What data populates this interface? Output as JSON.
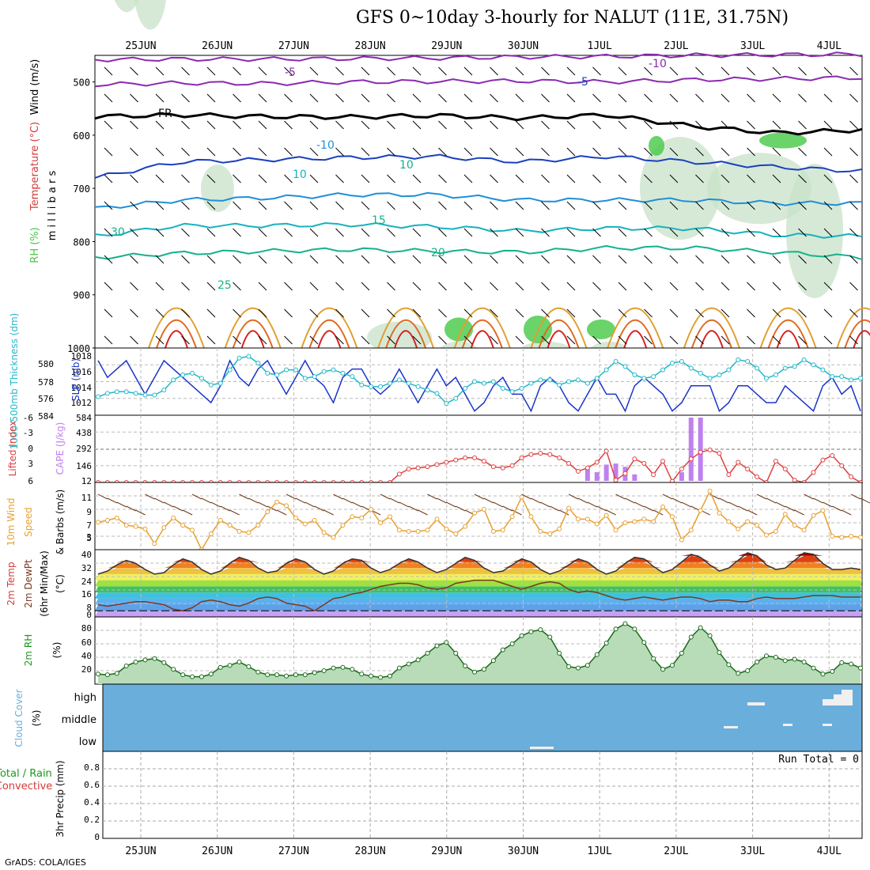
{
  "title": "GFS 0~10day 3-hourly for NALUT (11E, 31.75N)",
  "credit": "GrADS: COLA/IGES",
  "colors": {
    "rh_fill": "#c8e2c8",
    "rh_dark": "#6a8c6a",
    "rh_bright": "#45c845",
    "wind_m5": "#8a2ab0",
    "freeze": "#000000",
    "t_m5": "#1a3fbf",
    "t_m10": "#1f8fd8",
    "t_15": "#17b2bf",
    "t_20": "#14b28a",
    "t_25": "#e0a030",
    "t_30": "#e06a20",
    "t_35": "#d82020",
    "slp": "#1a35c8",
    "thick": "#22b8c8",
    "cape": "#c080f0",
    "li": "#e04040",
    "wind10": "#e8a030",
    "barb": "#6b3a1a",
    "cloud": "#6aaedc",
    "precip_grid": "#999999"
  },
  "chart_data": [
    {
      "type": "heatmap",
      "panel": "upper_air",
      "ylabel": "m i l l i b a r s",
      "side_labels": [
        "Wind (m/s)",
        "Temperature (°C)",
        "RH (%)"
      ],
      "yticks": [
        500,
        600,
        700,
        800,
        900,
        1000
      ],
      "ylim": [
        1000,
        450
      ],
      "x_dates": [
        "25JUN",
        "26JUN",
        "27JUN",
        "28JUN",
        "29JUN",
        "30JUN",
        "1JUL",
        "2JUL",
        "3JUL",
        "4JUL"
      ],
      "contour_labels": [
        "-10",
        "-5",
        "FR",
        "-5",
        "-10",
        "10",
        "15",
        "20",
        "25",
        "30",
        "10"
      ],
      "isotherms": [
        {
          "name": "-10",
          "p": [
            458,
            457,
            457,
            456,
            455,
            453,
            452,
            450,
            449,
            448
          ]
        },
        {
          "name": "-5",
          "p": [
            505,
            502,
            503,
            500,
            499,
            498,
            500,
            496,
            494,
            492
          ]
        },
        {
          "name": "FR",
          "p": [
            565,
            562,
            565,
            566,
            563,
            568,
            562,
            583,
            596,
            590
          ]
        },
        {
          "name": "-5",
          "p": [
            680,
            650,
            646,
            642,
            640,
            650,
            640,
            650,
            660,
            668
          ]
        },
        {
          "name": "10",
          "p": [
            738,
            722,
            718,
            712,
            712,
            722,
            722,
            722,
            728,
            728
          ]
        },
        {
          "name": "15",
          "p": [
            790,
            770,
            770,
            768,
            772,
            780,
            775,
            775,
            788,
            790
          ]
        },
        {
          "name": "20",
          "p": [
            830,
            822,
            818,
            815,
            818,
            820,
            812,
            812,
            820,
            830
          ]
        }
      ]
    },
    {
      "type": "line",
      "panel": "slp_thickness",
      "ylabel_left": "1000-500mb Thickness (dm)",
      "ylabel_right": "SLP (mb)",
      "left_ticks": [
        "580",
        "578",
        "576",
        "584"
      ],
      "right_ticks": [
        "1018",
        "1016",
        "1014",
        "1012"
      ],
      "series": [
        {
          "name": "SLP",
          "values": [
            1017,
            1015,
            1016,
            1017,
            1015,
            1013,
            1015,
            1017,
            1016,
            1015,
            1014,
            1013,
            1012,
            1014,
            1017,
            1015,
            1014,
            1016,
            1017,
            1015,
            1013,
            1015,
            1017,
            1015,
            1014,
            1012,
            1015,
            1016,
            1016,
            1014,
            1013,
            1014,
            1016,
            1014,
            1012,
            1014,
            1016,
            1014,
            1015,
            1013,
            1011,
            1012,
            1014,
            1015,
            1013,
            1013,
            1011,
            1014,
            1015,
            1014,
            1012,
            1011,
            1013,
            1015,
            1013,
            1013,
            1011,
            1014,
            1015,
            1014,
            1013,
            1011,
            1012,
            1014,
            1014,
            1014,
            1011,
            1012,
            1014,
            1014,
            1013,
            1012,
            1012,
            1014,
            1013,
            1012,
            1011,
            1014,
            1015,
            1013,
            1014,
            1011
          ]
        },
        {
          "name": "Thickness",
          "values": [
            576.2,
            576.6,
            576.8,
            576.8,
            576.6,
            576.4,
            576.4,
            577.0,
            578.2,
            578.8,
            579.0,
            578.4,
            577.6,
            577.8,
            579.4,
            580.8,
            581.0,
            580.2,
            579.0,
            578.8,
            579.4,
            579.4,
            578.4,
            578.6,
            579.2,
            579.4,
            579.0,
            578.6,
            577.6,
            577.4,
            577.4,
            577.8,
            578.2,
            577.8,
            577.4,
            577.0,
            576.6,
            575.4,
            576.0,
            577.2,
            578.0,
            577.8,
            578.0,
            577.2,
            576.8,
            577.2,
            577.8,
            578.2,
            578.2,
            577.6,
            578.0,
            578.2,
            577.8,
            578.4,
            579.4,
            580.4,
            579.8,
            578.8,
            578.4,
            578.6,
            579.4,
            580.2,
            580.4,
            579.6,
            579.0,
            578.4,
            578.8,
            579.4,
            580.6,
            580.4,
            579.6,
            578.4,
            578.8,
            579.6,
            579.8,
            580.6,
            580.0,
            579.4,
            578.6,
            578.6,
            578.2,
            578.4
          ]
        }
      ]
    },
    {
      "type": "bar",
      "panel": "cape_li",
      "ylabel_left": "Lifted Index",
      "ylabel_right": "CAPE (J/kg)",
      "left_ticks": [
        "-6",
        "-3",
        "0",
        "3",
        "6"
      ],
      "right_ticks": [
        "584",
        "438",
        "292",
        "146",
        "12"
      ],
      "cape": [
        0,
        0,
        0,
        0,
        0,
        0,
        0,
        0,
        0,
        0,
        0,
        0,
        0,
        0,
        0,
        0,
        0,
        0,
        0,
        0,
        0,
        0,
        0,
        0,
        0,
        0,
        0,
        0,
        0,
        0,
        0,
        0,
        0,
        0,
        0,
        0,
        0,
        0,
        0,
        0,
        0,
        0,
        0,
        0,
        0,
        0,
        0,
        0,
        0,
        0,
        0,
        0,
        110,
        80,
        150,
        160,
        130,
        60,
        0,
        0,
        0,
        0,
        80,
        584,
        584,
        0,
        0,
        0,
        0,
        0,
        0,
        0,
        0,
        0,
        0,
        0,
        0,
        0,
        0,
        0,
        0,
        0
      ],
      "lifted_index": [
        6,
        6,
        6,
        6,
        6,
        6,
        6,
        6,
        6,
        6,
        6,
        6,
        6,
        6,
        6,
        6,
        6,
        6,
        6,
        6,
        6,
        6,
        6,
        6,
        6,
        6,
        6,
        6,
        6,
        6,
        6,
        6,
        4.5,
        3.6,
        3.4,
        3.2,
        2.8,
        2.4,
        2.0,
        1.6,
        1.6,
        2.2,
        3.2,
        3.4,
        3.0,
        1.6,
        1.0,
        0.8,
        1.0,
        1.6,
        2.6,
        4.0,
        3.4,
        2.4,
        0.4,
        5.6,
        4.4,
        1.8,
        2.6,
        4.6,
        2.2,
        5.8,
        3.6,
        1.8,
        0.6,
        0.2,
        0.8,
        4.6,
        2.4,
        3.6,
        5.0,
        6.0,
        2.2,
        3.6,
        5.6,
        6.0,
        4.2,
        2.0,
        1.2,
        3.0,
        5.0,
        6.0
      ]
    },
    {
      "type": "line",
      "panel": "wind10",
      "ylabel": "10m Wind Speed & Barbs (m/s)",
      "yticks": [
        "11",
        "9",
        "7",
        "5",
        "3"
      ],
      "ylim": [
        1,
        12
      ],
      "series": [
        {
          "name": "Speed",
          "values": [
            5.5,
            5.8,
            6.2,
            5.0,
            4.8,
            4.4,
            2.0,
            4.6,
            6.2,
            5.0,
            4.2,
            1.0,
            3.6,
            5.8,
            5.0,
            4.0,
            3.8,
            5.0,
            7.2,
            8.8,
            8.2,
            6.2,
            5.2,
            5.8,
            3.8,
            3.0,
            5.0,
            6.4,
            6.2,
            7.6,
            5.4,
            6.4,
            4.2,
            4.0,
            4.0,
            4.2,
            6.0,
            4.4,
            3.6,
            4.8,
            7.0,
            7.6,
            4.0,
            4.2,
            6.4,
            9.6,
            6.4,
            4.0,
            3.6,
            4.4,
            7.8,
            6.0,
            6.0,
            5.2,
            6.6,
            4.2,
            5.4,
            5.6,
            6.0,
            5.6,
            8.0,
            6.4,
            2.6,
            4.2,
            7.4,
            10.6,
            7.0,
            5.6,
            4.4,
            5.6,
            5.0,
            3.4,
            4.0,
            6.8,
            5.0,
            4.2,
            6.6,
            7.4,
            3.2,
            3.0,
            3.2,
            3.0
          ]
        }
      ]
    },
    {
      "type": "area",
      "panel": "temp2m",
      "ylabel": "2m Temp 2m DewPt (6hr Min/Max) (°C)",
      "yticks": [
        "40",
        "32",
        "24",
        "16",
        "8",
        "0"
      ],
      "ylim": [
        -4,
        40
      ],
      "series": [
        {
          "name": "Temp",
          "values": [
            24,
            26,
            30,
            33,
            31,
            27,
            24,
            25,
            30,
            34,
            32,
            27,
            24,
            26,
            31,
            35,
            33,
            28,
            25,
            26,
            31,
            34,
            32,
            27,
            24,
            26,
            31,
            34,
            33,
            28,
            25,
            27,
            31,
            34,
            32,
            28,
            25,
            27,
            31,
            35,
            33,
            28,
            25,
            26,
            30,
            34,
            32,
            27,
            24,
            26,
            30,
            34,
            32,
            27,
            24,
            26,
            31,
            35,
            34,
            29,
            25,
            27,
            32,
            37,
            35,
            30,
            26,
            28,
            33,
            38,
            36,
            30,
            27,
            28,
            33,
            38,
            37,
            31,
            27,
            27,
            28,
            27
          ]
        },
        {
          "name": "DewPt",
          "values": [
            4,
            3,
            4,
            5,
            6,
            6,
            5,
            4,
            1,
            0,
            2,
            6,
            7,
            6,
            4,
            3,
            5,
            8,
            9,
            8,
            5,
            4,
            3,
            0,
            4,
            8,
            9,
            11,
            12,
            14,
            16,
            17,
            18,
            18,
            17,
            15,
            14,
            15,
            18,
            19,
            20,
            20,
            20,
            18,
            16,
            14,
            16,
            18,
            19,
            18,
            14,
            12,
            13,
            12,
            10,
            8,
            7,
            8,
            9,
            8,
            7,
            8,
            9,
            9,
            8,
            6,
            7,
            7,
            6,
            6,
            8,
            9,
            8,
            8,
            8,
            9,
            10,
            10,
            10,
            9,
            9,
            9
          ]
        }
      ]
    },
    {
      "type": "area",
      "panel": "rh2m",
      "ylabel": "2m RH (%)",
      "yticks": [
        "80",
        "60",
        "40",
        "20"
      ],
      "ylim": [
        0,
        100
      ],
      "series": [
        {
          "name": "RH",
          "values": [
            15,
            14,
            16,
            27,
            33,
            36,
            38,
            32,
            22,
            14,
            11,
            11,
            15,
            25,
            28,
            33,
            26,
            18,
            14,
            14,
            12,
            14,
            14,
            17,
            20,
            24,
            25,
            22,
            15,
            12,
            10,
            12,
            24,
            30,
            36,
            46,
            57,
            62,
            46,
            27,
            18,
            22,
            35,
            51,
            60,
            72,
            78,
            81,
            70,
            46,
            26,
            24,
            28,
            44,
            61,
            82,
            90,
            82,
            62,
            38,
            22,
            28,
            46,
            70,
            84,
            72,
            47,
            29,
            16,
            20,
            33,
            42,
            40,
            35,
            37,
            33,
            24,
            15,
            19,
            32,
            30,
            24
          ]
        }
      ]
    },
    {
      "type": "bar",
      "panel": "cloud",
      "ylabel": "Cloud Cover (%)",
      "levels": [
        "high",
        "middle",
        "low"
      ]
    },
    {
      "type": "bar",
      "panel": "precip",
      "ylabel": "3hr Precip (mm)",
      "side_labels": [
        "Total / Rain",
        "Convective"
      ],
      "yticks": [
        "0.8",
        "0.6",
        "0.4",
        "0.2",
        "0"
      ],
      "ylim": [
        0,
        1
      ],
      "run_total": "Run Total = 0",
      "values": []
    }
  ]
}
